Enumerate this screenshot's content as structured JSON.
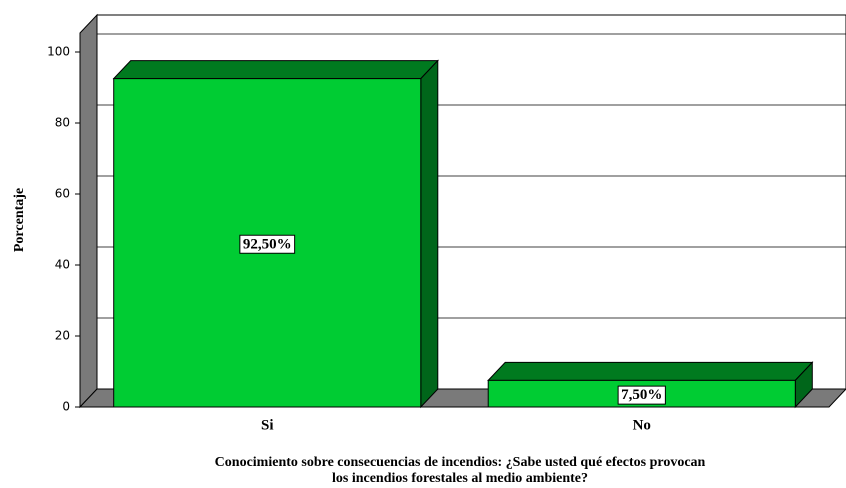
{
  "chart_data": {
    "type": "bar3d",
    "categories": [
      "Si",
      "No"
    ],
    "values": [
      92.5,
      7.5
    ],
    "value_labels": [
      "92,50%",
      "7,50%"
    ],
    "color": "#00cc33",
    "ylabel": "Porcentaje",
    "xlabel": [
      "Conocimiento sobre consecuencias de incendios: ¿Sabe usted qué efectos provocan",
      "los incendios forestales al medio ambiente?"
    ],
    "ylim": [
      0,
      100
    ],
    "yticks": [
      0,
      20,
      40,
      60,
      80,
      100
    ],
    "grid": true
  }
}
